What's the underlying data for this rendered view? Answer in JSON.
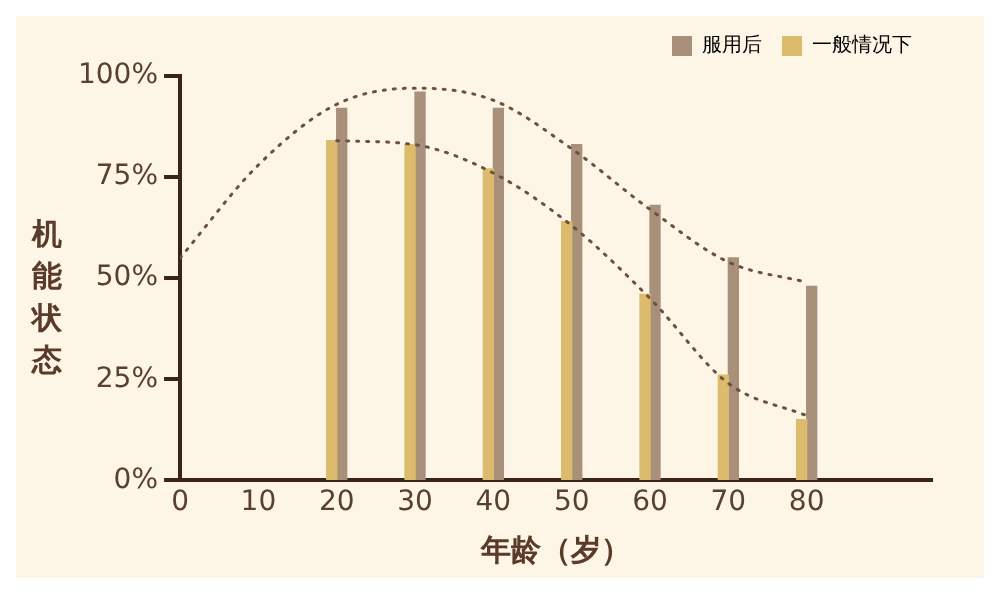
{
  "chart_data": {
    "type": "bar",
    "xlabel": "年龄（岁）",
    "ylabel": "机能状态",
    "legend": "top right",
    "grid": false,
    "marker": "none",
    "xlim": [
      0,
      96
    ],
    "xticks": [
      0,
      10,
      20,
      30,
      40,
      50,
      60,
      70,
      80
    ],
    "ylim": [
      0,
      100
    ],
    "yticks": [
      {
        "value": 0,
        "label": "0%"
      },
      {
        "value": 25,
        "label": "25%"
      },
      {
        "value": 50,
        "label": "50%"
      },
      {
        "value": 75,
        "label": "75%"
      },
      {
        "value": 100,
        "label": "100%"
      }
    ],
    "x": [
      20,
      30,
      40,
      50,
      60,
      70,
      80
    ],
    "series": [
      {
        "name": "一般情况下",
        "color": "#dcbc6c",
        "values": [
          84,
          83,
          77,
          64,
          46,
          26,
          15
        ]
      },
      {
        "name": "服用后",
        "color": "#a8907a",
        "values": [
          92,
          96,
          92,
          83,
          68,
          55,
          48
        ]
      },
      {
        "type": "line",
        "color": "#6e5040",
        "line_style": "dotted",
        "x": [
          0,
          10,
          20,
          30,
          40,
          50,
          60,
          70,
          80
        ],
        "values": [
          55,
          78,
          93,
          97,
          94,
          82,
          67,
          54,
          49
        ]
      },
      {
        "type": "line",
        "color": "#6e5040",
        "line_style": "dotted",
        "x": [
          20,
          30,
          40,
          50,
          60,
          70,
          80
        ],
        "values": [
          84,
          83,
          76,
          63,
          45,
          24,
          16
        ]
      }
    ]
  }
}
